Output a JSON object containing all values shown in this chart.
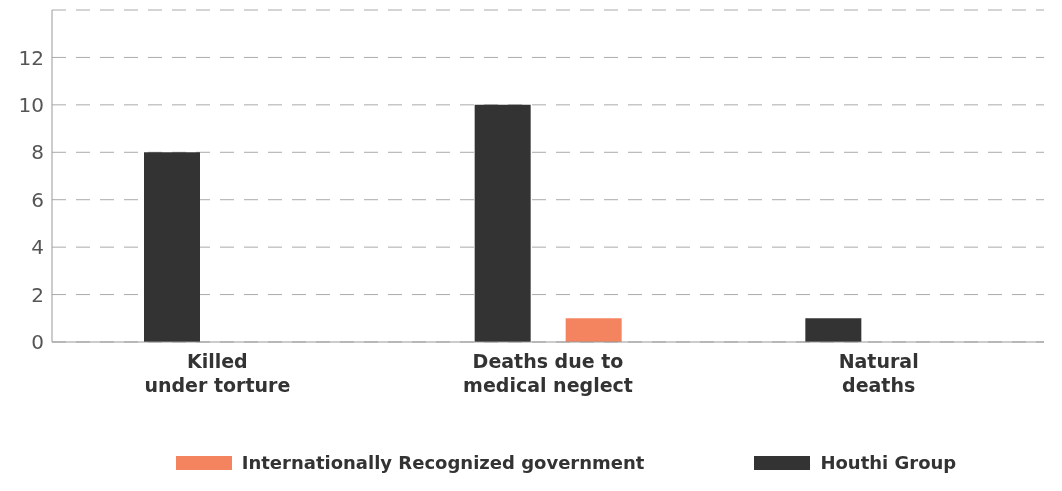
{
  "chart_data": {
    "type": "bar",
    "categories": [
      "Killed\nunder torture",
      "Deaths due to\nmedical neglect",
      "Natural\ndeaths"
    ],
    "series": [
      {
        "name": "Internationally Recognized government",
        "color": "#f4845f",
        "values": [
          0,
          1,
          0
        ]
      },
      {
        "name": "Houthi Group",
        "color": "#333333",
        "values": [
          8,
          10,
          1
        ]
      }
    ],
    "ylim": [
      0,
      14
    ],
    "yticks": [
      0,
      2,
      4,
      6,
      8,
      10,
      12
    ],
    "grid": "y",
    "legend": "bottom"
  }
}
